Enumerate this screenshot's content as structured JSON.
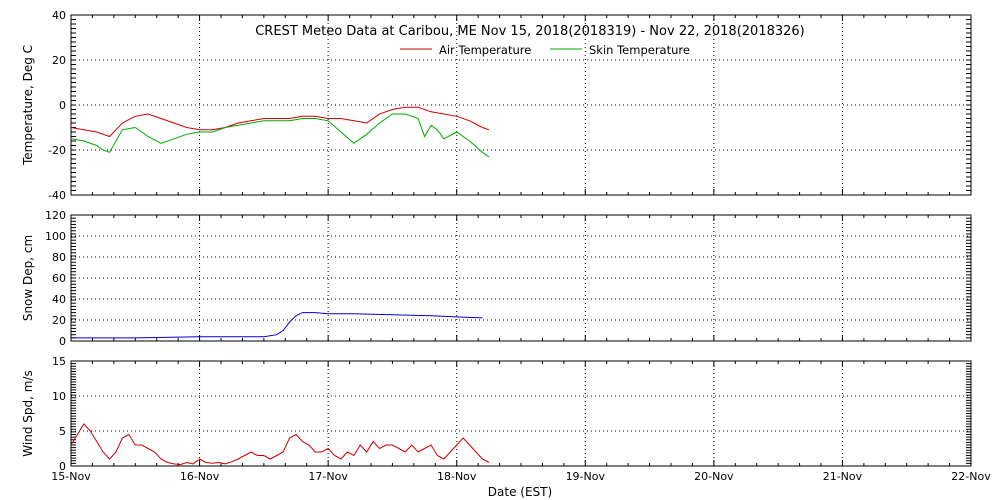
{
  "title": "CREST Meteo Data at Caribou, ME   Nov 15, 2018(2018319) - Nov 22, 2018(2018326)",
  "xlabel": "Date (EST)",
  "x_ticks": [
    "15-Nov",
    "16-Nov",
    "17-Nov",
    "18-Nov",
    "19-Nov",
    "20-Nov",
    "21-Nov",
    "22-Nov"
  ],
  "colors": {
    "air": "#cc0000",
    "skin": "#00aa00",
    "snow": "#0000cc",
    "wind": "#cc0000",
    "axis": "#000000"
  },
  "chart_data": [
    {
      "type": "line",
      "ylabel": "Temperature, Deg C",
      "ylim": [
        -40,
        40
      ],
      "y_ticks": [
        40,
        20,
        0,
        -20,
        -40
      ],
      "xlim": [
        0,
        7
      ],
      "legend": "top-center",
      "grid": true,
      "series": [
        {
          "name": "Air Temperature",
          "color_key": "air",
          "x": [
            0,
            0.2,
            0.3,
            0.4,
            0.5,
            0.6,
            0.7,
            0.8,
            0.9,
            1.0,
            1.1,
            1.2,
            1.3,
            1.4,
            1.5,
            1.6,
            1.7,
            1.8,
            1.9,
            2.0,
            2.1,
            2.2,
            2.3,
            2.4,
            2.5,
            2.6,
            2.7,
            2.8,
            2.9,
            3.0,
            3.1,
            3.2,
            3.25
          ],
          "values": [
            -10,
            -12,
            -14,
            -8,
            -5,
            -4,
            -6,
            -8,
            -10,
            -11,
            -11,
            -10,
            -8,
            -7,
            -6,
            -6,
            -6,
            -5,
            -5,
            -6,
            -6,
            -7,
            -8,
            -4,
            -2,
            -1,
            -1,
            -3,
            -4,
            -5,
            -7,
            -10,
            -11
          ]
        },
        {
          "name": "Skin Temperature",
          "color_key": "skin",
          "x": [
            0,
            0.1,
            0.2,
            0.25,
            0.3,
            0.35,
            0.4,
            0.5,
            0.6,
            0.7,
            0.8,
            0.9,
            1.0,
            1.1,
            1.2,
            1.3,
            1.4,
            1.5,
            1.6,
            1.7,
            1.8,
            1.9,
            2.0,
            2.1,
            2.2,
            2.3,
            2.4,
            2.5,
            2.6,
            2.7,
            2.75,
            2.8,
            2.85,
            2.9,
            3.0,
            3.1,
            3.2,
            3.25
          ],
          "values": [
            -15,
            -16,
            -18,
            -20,
            -21,
            -16,
            -11,
            -10,
            -14,
            -17,
            -15,
            -13,
            -12,
            -12,
            -10,
            -9,
            -8,
            -7,
            -7,
            -7,
            -6,
            -6,
            -7,
            -12,
            -17,
            -13,
            -8,
            -4,
            -4,
            -6,
            -14,
            -9,
            -11,
            -15,
            -12,
            -16,
            -21,
            -23
          ]
        }
      ]
    },
    {
      "type": "line",
      "ylabel": "Snow Dep, cm",
      "ylim": [
        0,
        120
      ],
      "y_ticks": [
        120,
        100,
        80,
        60,
        40,
        20,
        0
      ],
      "xlim": [
        0,
        7
      ],
      "grid": true,
      "series": [
        {
          "color_key": "snow",
          "x": [
            0,
            0.5,
            1.0,
            1.4,
            1.5,
            1.6,
            1.65,
            1.7,
            1.75,
            1.8,
            1.9,
            2.0,
            2.2,
            2.5,
            2.8,
            3.0,
            3.2
          ],
          "values": [
            3,
            3,
            4,
            4,
            4,
            6,
            10,
            18,
            24,
            27,
            27,
            26,
            26,
            25,
            24,
            23,
            22
          ]
        }
      ]
    },
    {
      "type": "line",
      "ylabel": "Wind Spd, m/s",
      "ylim": [
        0,
        15
      ],
      "y_ticks": [
        15,
        10,
        5,
        0
      ],
      "xlim": [
        0,
        7
      ],
      "grid": true,
      "series": [
        {
          "color_key": "wind",
          "x": [
            0,
            0.05,
            0.1,
            0.15,
            0.2,
            0.25,
            0.3,
            0.35,
            0.4,
            0.45,
            0.5,
            0.55,
            0.6,
            0.65,
            0.7,
            0.75,
            0.8,
            0.85,
            0.9,
            0.95,
            1.0,
            1.05,
            1.1,
            1.15,
            1.2,
            1.25,
            1.3,
            1.35,
            1.4,
            1.45,
            1.5,
            1.55,
            1.6,
            1.65,
            1.7,
            1.75,
            1.8,
            1.85,
            1.9,
            1.95,
            2.0,
            2.05,
            2.1,
            2.15,
            2.2,
            2.25,
            2.3,
            2.35,
            2.4,
            2.45,
            2.5,
            2.55,
            2.6,
            2.65,
            2.7,
            2.75,
            2.8,
            2.85,
            2.9,
            2.95,
            3.0,
            3.05,
            3.1,
            3.15,
            3.2,
            3.25
          ],
          "values": [
            3,
            4.5,
            6,
            5,
            3.5,
            2,
            1,
            2,
            4,
            4.5,
            3,
            3,
            2.5,
            2,
            1,
            0.5,
            0.3,
            0.2,
            0.5,
            0.3,
            1,
            0.5,
            0.4,
            0.5,
            0.3,
            0.6,
            1,
            1.5,
            2,
            1.5,
            1.5,
            1,
            1.5,
            2,
            4,
            4.5,
            3.5,
            3,
            2,
            2,
            2.5,
            1.5,
            1,
            2,
            1.5,
            3,
            2,
            3.5,
            2.5,
            3,
            3,
            2.5,
            2,
            3,
            2,
            2.5,
            3,
            1.5,
            1,
            2,
            3,
            4,
            3,
            2,
            1,
            0.5
          ]
        }
      ]
    }
  ]
}
